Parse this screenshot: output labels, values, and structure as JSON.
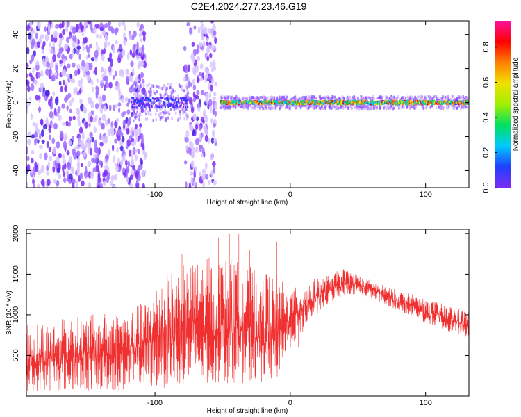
{
  "figure_title": "C2E4.2024.277.23.46.G19",
  "chart_data": [
    {
      "type": "heatmap",
      "title": "",
      "xlabel": "Height of straight line (km)",
      "ylabel": "Frequency (Hz)",
      "xlim": [
        -195,
        132
      ],
      "ylim": [
        -50,
        48
      ],
      "xticks": [
        -100,
        0,
        100
      ],
      "yticks": [
        -40,
        -20,
        0,
        20,
        40
      ],
      "colorbar": {
        "label": "Normalized spectral amplitude",
        "range": [
          0,
          0.95
        ],
        "ticks": [
          0.0,
          0.2,
          0.4,
          0.6,
          0.8
        ],
        "colormap": [
          "#ffffff",
          "#c9a8ff",
          "#7b2cf5",
          "#2040ff",
          "#00c8ff",
          "#00e060",
          "#f0e000",
          "#ff8000",
          "#ff0000",
          "#ff10a0"
        ]
      },
      "features": [
        {
          "region": "broadband noise",
          "x_range": [
            -195,
            -107
          ],
          "y_range": [
            -50,
            48
          ],
          "amplitude": 0.05
        },
        {
          "region": "broadband noise",
          "x_range": [
            -78,
            -55
          ],
          "y_range": [
            -50,
            48
          ],
          "amplitude": 0.05
        },
        {
          "region": "signal burst",
          "x_range": [
            -118,
            -76
          ],
          "center_hz": 0,
          "halfwidth_hz": 6,
          "peak_amplitude": 0.35
        },
        {
          "region": "carrier line",
          "x_range": [
            -52,
            132
          ],
          "center_hz": 0,
          "halfwidth_hz": 2,
          "peak_amplitude": 0.9
        }
      ]
    },
    {
      "type": "line",
      "title": "",
      "xlabel": "Height of straight line (km)",
      "ylabel": "SNR (10 * v/v)",
      "xlim": [
        -195,
        132
      ],
      "ylim": [
        0,
        2050
      ],
      "xticks": [
        -100,
        0,
        100
      ],
      "yticks": [
        500,
        1000,
        1500,
        2000
      ],
      "series_color": "#f03030",
      "envelope": {
        "x": [
          -195,
          -150,
          -120,
          -105,
          -95,
          -80,
          -60,
          -45,
          -30,
          -10,
          0,
          10,
          20,
          30,
          40,
          50,
          60,
          80,
          100,
          120,
          132
        ],
        "low": [
          60,
          60,
          60,
          80,
          100,
          120,
          140,
          160,
          160,
          180,
          600,
          800,
          1000,
          1150,
          1250,
          1250,
          1200,
          1050,
          900,
          780,
          720
        ],
        "high": [
          900,
          1000,
          1050,
          1200,
          1500,
          1600,
          1700,
          1700,
          1600,
          1500,
          1300,
          1400,
          1450,
          1500,
          1580,
          1500,
          1420,
          1300,
          1200,
          1100,
          1050
        ]
      },
      "spikes": [
        {
          "x": -91,
          "y": 2050
        },
        {
          "x": -45,
          "y": 2000
        },
        {
          "x": -38,
          "y": 2000
        },
        {
          "x": -53,
          "y": 1950
        },
        {
          "x": -10,
          "y": 1900
        },
        {
          "x": -30,
          "y": 1800
        },
        {
          "x": -80,
          "y": 1750
        },
        {
          "x": -60,
          "y": 1700
        }
      ],
      "dips": [
        {
          "x": 10,
          "y": 400
        },
        {
          "x": 6,
          "y": 600
        }
      ]
    }
  ]
}
